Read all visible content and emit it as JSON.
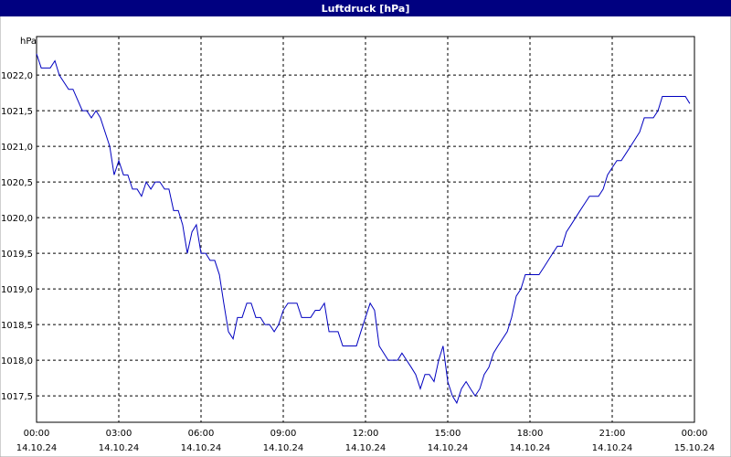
{
  "chart_data": {
    "type": "line",
    "title": "Luftdruck [hPa]",
    "y_label": "hPa",
    "x": [
      0,
      0.17,
      0.5,
      0.67,
      0.83,
      1.17,
      1.33,
      1.67,
      1.83,
      2,
      2.17,
      2.33,
      2.67,
      2.83,
      3,
      3.17,
      3.33,
      3.5,
      3.67,
      3.83,
      4,
      4.17,
      4.33,
      4.5,
      4.67,
      4.83,
      5,
      5.17,
      5.33,
      5.5,
      5.67,
      5.83,
      6,
      6.17,
      6.33,
      6.5,
      6.67,
      6.83,
      7,
      7.17,
      7.33,
      7.5,
      7.67,
      7.83,
      8,
      8.17,
      8.33,
      8.5,
      8.67,
      8.83,
      9,
      9.17,
      9.5,
      9.67,
      10,
      10.17,
      10.33,
      10.5,
      10.67,
      11,
      11.17,
      11.67,
      11.83,
      12,
      12.17,
      12.33,
      12.5,
      12.83,
      13.17,
      13.33,
      13.5,
      13.67,
      13.83,
      14,
      14.17,
      14.33,
      14.5,
      14.67,
      14.83,
      15,
      15.17,
      15.33,
      15.5,
      15.67,
      15.83,
      16,
      16.17,
      16.33,
      16.5,
      16.67,
      16.83,
      17.17,
      17.33,
      17.5,
      17.67,
      17.83,
      18.17,
      18.33,
      18.5,
      18.83,
      19,
      19.17,
      19.33,
      19.5,
      19.83,
      20,
      20.17,
      20.5,
      20.67,
      20.83,
      21,
      21.17,
      21.33,
      21.5,
      21.67,
      22,
      22.17,
      22.5,
      22.67,
      22.83,
      23.5,
      23.67,
      23.83
    ],
    "series": [
      {
        "name": "Luftdruck",
        "color": "#0000c0",
        "values": [
          1022.3,
          1022.1,
          1022.1,
          1022.2,
          1022.0,
          1021.8,
          1021.8,
          1021.5,
          1021.5,
          1021.4,
          1021.5,
          1021.4,
          1021.0,
          1020.6,
          1020.8,
          1020.6,
          1020.6,
          1020.4,
          1020.4,
          1020.3,
          1020.5,
          1020.4,
          1020.5,
          1020.5,
          1020.4,
          1020.4,
          1020.1,
          1020.1,
          1019.9,
          1019.5,
          1019.8,
          1019.9,
          1019.5,
          1019.5,
          1019.4,
          1019.4,
          1019.2,
          1018.8,
          1018.4,
          1018.3,
          1018.6,
          1018.6,
          1018.8,
          1018.8,
          1018.6,
          1018.6,
          1018.5,
          1018.5,
          1018.4,
          1018.5,
          1018.7,
          1018.8,
          1018.8,
          1018.6,
          1018.6,
          1018.7,
          1018.7,
          1018.8,
          1018.4,
          1018.4,
          1018.2,
          1018.2,
          1018.4,
          1018.6,
          1018.8,
          1018.7,
          1018.2,
          1018.0,
          1018.0,
          1018.1,
          1018.0,
          1017.9,
          1017.8,
          1017.6,
          1017.8,
          1017.8,
          1017.7,
          1018.0,
          1018.2,
          1017.7,
          1017.5,
          1017.4,
          1017.6,
          1017.7,
          1017.6,
          1017.5,
          1017.6,
          1017.8,
          1017.9,
          1018.1,
          1018.2,
          1018.4,
          1018.6,
          1018.9,
          1019.0,
          1019.2,
          1019.2,
          1019.2,
          1019.3,
          1019.5,
          1019.6,
          1019.6,
          1019.8,
          1019.9,
          1020.1,
          1020.2,
          1020.3,
          1020.3,
          1020.4,
          1020.6,
          1020.7,
          1020.8,
          1020.8,
          1020.9,
          1021.0,
          1021.2,
          1021.4,
          1021.4,
          1021.5,
          1021.7,
          1021.7,
          1021.7,
          1021.6
        ]
      }
    ],
    "xlim": [
      0,
      24
    ],
    "xticks": [
      {
        "value": 0,
        "label": "00:00 14.10.24"
      },
      {
        "value": 3,
        "label": "03:00 14.10.24"
      },
      {
        "value": 6,
        "label": "06:00 14.10.24"
      },
      {
        "value": 9,
        "label": "09:00 14.10.24"
      },
      {
        "value": 12,
        "label": "12:00 14.10.24"
      },
      {
        "value": 15,
        "label": "15:00 14.10.24"
      },
      {
        "value": 18,
        "label": "18:00 14.10.24"
      },
      {
        "value": 21,
        "label": "21:00 14.10.24"
      },
      {
        "value": 24,
        "label": "00:00 15.10.24"
      }
    ],
    "ylim": [
      1017.13,
      1022.54
    ],
    "yticks": [
      {
        "value": 1017.5,
        "label": "1017,5"
      },
      {
        "value": 1018,
        "label": "1018,0"
      },
      {
        "value": 1018.5,
        "label": "1018,5"
      },
      {
        "value": 1019,
        "label": "1019,0"
      },
      {
        "value": 1019.5,
        "label": "1019,5"
      },
      {
        "value": 1020,
        "label": "1020,0"
      },
      {
        "value": 1020.5,
        "label": "1020,5"
      },
      {
        "value": 1021,
        "label": "1021,0"
      },
      {
        "value": 1021.5,
        "label": "1021,5"
      },
      {
        "value": 1022,
        "label": "1022,0"
      }
    ],
    "grid": true
  }
}
